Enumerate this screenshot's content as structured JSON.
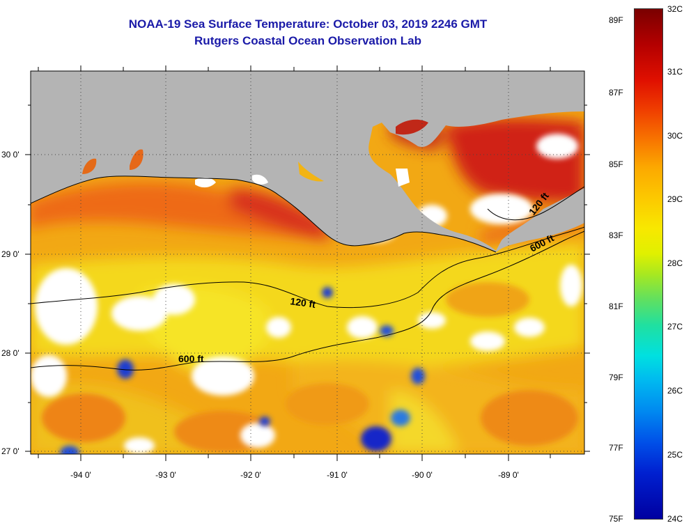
{
  "title": "NOAA-19 Sea Surface Temperature:  October 03, 2019 2246 GMT",
  "subtitle": "Rutgers Coastal Ocean Observation Lab",
  "latitude_labels": [
    "30 0'",
    "29 0'",
    "28 0'",
    "27 0'"
  ],
  "longitude_labels": [
    "-94 0'",
    "-93 0'",
    "-92 0'",
    "-91 0'",
    "-90 0'",
    "-89 0'"
  ],
  "contours": [
    {
      "label": "120 ft",
      "position_hint": "center"
    },
    {
      "label": "600 ft",
      "position_hint": "lower-left"
    },
    {
      "label": "120 ft",
      "position_hint": "upper-right"
    },
    {
      "label": "600 ft",
      "position_hint": "right"
    }
  ],
  "colorbar": {
    "fahrenheit_labels": [
      "89F",
      "87F",
      "85F",
      "83F",
      "81F",
      "79F",
      "77F",
      "75F"
    ],
    "celsius_labels": [
      "32C",
      "31C",
      "30C",
      "29C",
      "28C",
      "27C",
      "26C",
      "25C",
      "24C"
    ],
    "min_c": 24,
    "max_c": 32
  },
  "colors": {
    "land": "#b4b4b4",
    "cloud": "#ffffff",
    "title": "#1a1aa8",
    "warm": "#d83010",
    "mid": "#f2a010",
    "cool": "#f0e020"
  }
}
